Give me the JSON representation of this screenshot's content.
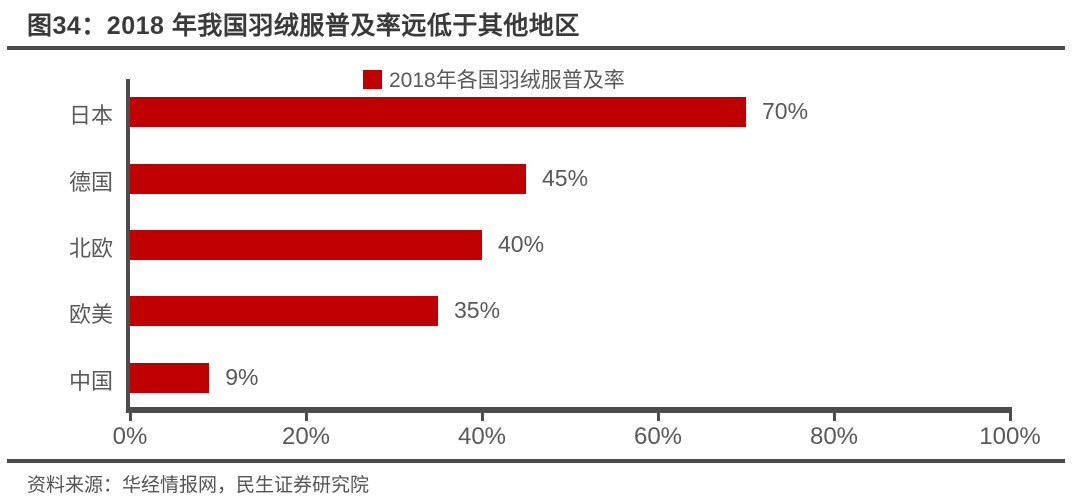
{
  "figure": {
    "title": "图34：2018 年我国羽绒服普及率远低于其他地区",
    "source": "资料来源：华经情报网，民生证券研究院"
  },
  "chart_data": {
    "type": "bar",
    "orientation": "horizontal",
    "title": "图34：2018 年我国羽绒服普及率远低于其他地区",
    "legend": "2018年各国羽绒服普及率",
    "legend_position": "top-center",
    "categories": [
      "日本",
      "德国",
      "北欧",
      "欧美",
      "中国"
    ],
    "values": [
      70,
      45,
      40,
      35,
      9
    ],
    "value_labels": [
      "70%",
      "45%",
      "40%",
      "35%",
      "9%"
    ],
    "x_ticks": [
      "0%",
      "20%",
      "40%",
      "60%",
      "80%",
      "100%"
    ],
    "x_tick_values": [
      0,
      20,
      40,
      60,
      80,
      100
    ],
    "xlim": [
      0,
      100
    ],
    "grid": false,
    "colors": {
      "bar": "#c00000",
      "axis": "#4c4c4c",
      "label": "#595959",
      "title": "#3a3a3a",
      "rule": "#4a4a4a"
    }
  }
}
